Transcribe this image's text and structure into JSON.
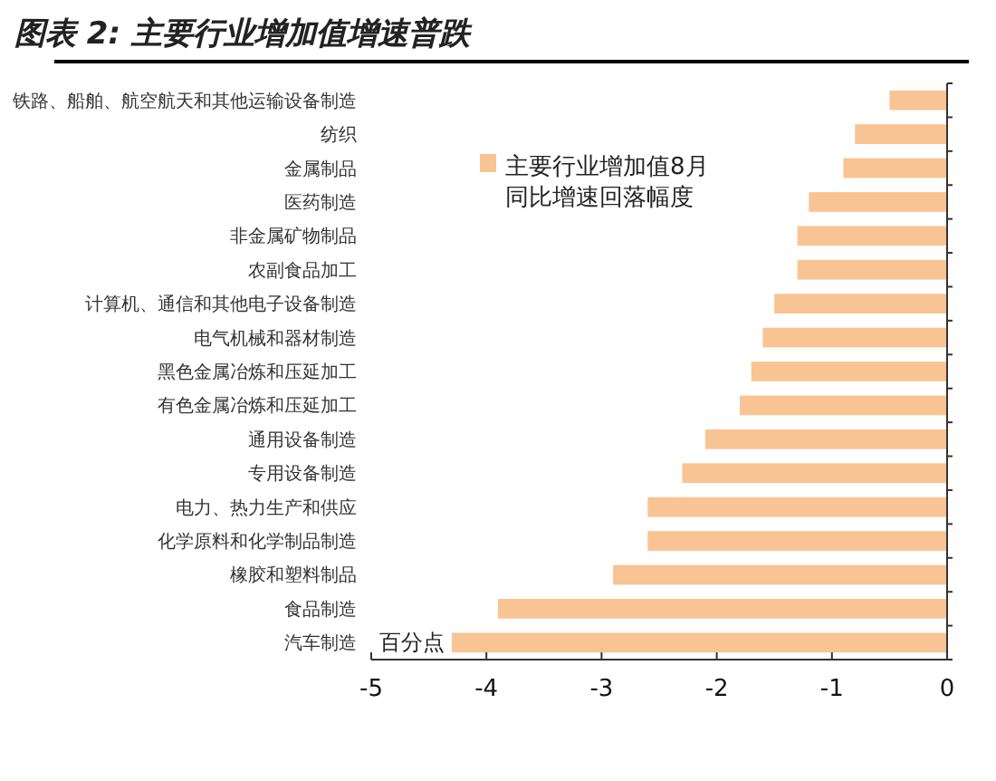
{
  "chart_data": {
    "type": "bar",
    "orientation": "horizontal",
    "title": "图表 2: 主要行业增加值增速普跌",
    "categories": [
      "铁路、船舶、航空航天和其他运输设备制造",
      "纺织",
      "金属制品",
      "医药制造",
      "非金属矿物制品",
      "农副食品加工",
      "计算机、通信和其他电子设备制造",
      "电气机械和器材制造",
      "黑色金属冶炼和压延加工",
      "有色金属冶炼和压延加工",
      "通用设备制造",
      "专用设备制造",
      "电力、热力生产和供应",
      "化学原料和化学制品制造",
      "橡胶和塑料制品",
      "食品制造",
      "汽车制造"
    ],
    "series": [
      {
        "name": "主要行业增加值8月同比增速回落幅度",
        "color": "#f9c493",
        "values": [
          -0.5,
          -0.8,
          -0.9,
          -1.2,
          -1.3,
          -1.3,
          -1.5,
          -1.6,
          -1.7,
          -1.8,
          -2.1,
          -2.3,
          -2.6,
          -2.6,
          -2.9,
          -3.9,
          -4.3
        ]
      }
    ],
    "xlim": [
      -5,
      0
    ],
    "xticks": [
      -5,
      -4,
      -3,
      -2,
      -1,
      0
    ],
    "legend": "top",
    "grid": false,
    "annotations": [
      {
        "text": "百分点",
        "x": -4.3,
        "y": "汽车制造"
      }
    ]
  }
}
